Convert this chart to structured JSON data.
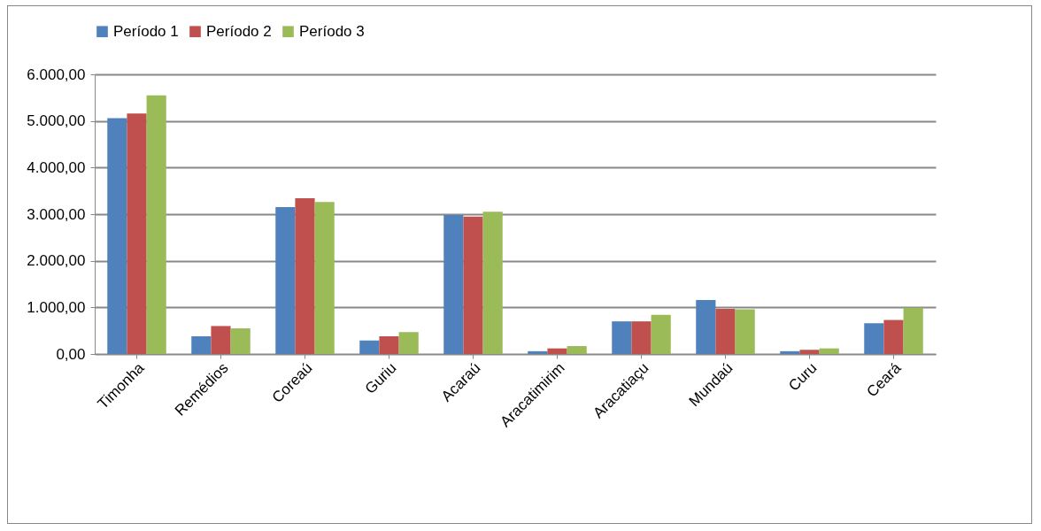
{
  "chart_data": {
    "type": "bar",
    "categories": [
      "Timonha",
      "Remédios",
      "Coreaú",
      "Guriu",
      "Acaraú",
      "Aracatimirim",
      "Aracatiaçu",
      "Mundaú",
      "Curu",
      "Ceará"
    ],
    "series": [
      {
        "name": "Período 1",
        "color": "#4f81bd",
        "values": [
          5060,
          380,
          3150,
          290,
          2980,
          60,
          700,
          1160,
          60,
          660
        ]
      },
      {
        "name": "Período 2",
        "color": "#c0504d",
        "values": [
          5160,
          600,
          3340,
          380,
          2950,
          120,
          700,
          970,
          90,
          730
        ]
      },
      {
        "name": "Período 3",
        "color": "#9bbb59",
        "values": [
          5550,
          550,
          3260,
          470,
          3050,
          170,
          840,
          960,
          120,
          990
        ]
      }
    ],
    "ylim": [
      0,
      6000
    ],
    "yticks": [
      {
        "value": 0,
        "label": "0,00"
      },
      {
        "value": 1000,
        "label": "1.000,00"
      },
      {
        "value": 2000,
        "label": "2.000,00"
      },
      {
        "value": 3000,
        "label": "3.000,00"
      },
      {
        "value": 4000,
        "label": "4.000,00"
      },
      {
        "value": 5000,
        "label": "5.000,00"
      },
      {
        "value": 6000,
        "label": "6.000,00"
      }
    ],
    "grid": "y",
    "legend": "top"
  }
}
